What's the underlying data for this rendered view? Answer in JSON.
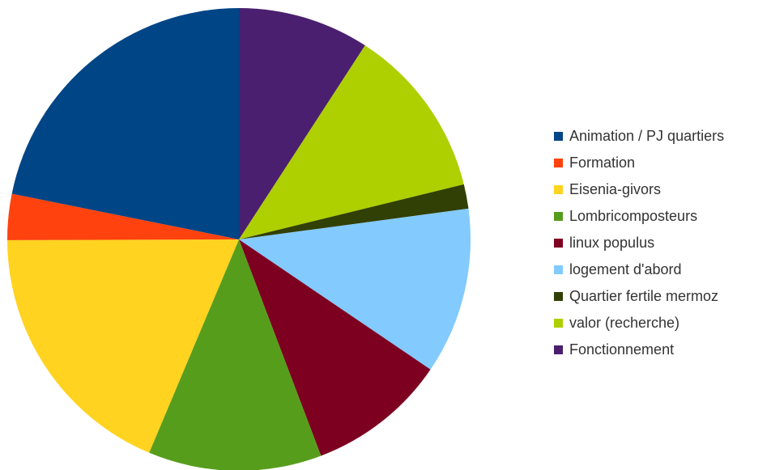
{
  "chart_data": {
    "type": "pie",
    "title": "",
    "start_angle_deg": 0,
    "direction": "clockwise",
    "legend_position": "right",
    "slices": [
      {
        "label": "Animation / PJ quartiers",
        "value": 23.1,
        "color": "#004586"
      },
      {
        "label": "Formation",
        "value": 3.4,
        "color": "#ff420e"
      },
      {
        "label": "Eisenia-givors",
        "value": 19.7,
        "color": "#ffd320"
      },
      {
        "label": "Lombricomposteurs",
        "value": 12.8,
        "color": "#579d1c"
      },
      {
        "label": "linux populus",
        "value": 10.3,
        "color": "#7e0021"
      },
      {
        "label": "logement d'abord",
        "value": 12.3,
        "color": "#83caff"
      },
      {
        "label": "Quartier fertile mermoz",
        "value": 1.8,
        "color": "#314004"
      },
      {
        "label": "valor (recherche)",
        "value": 12.7,
        "color": "#aecf00"
      },
      {
        "label": "Fonctionnement",
        "value": 9.7,
        "color": "#4b1f6f"
      }
    ],
    "drawing_order": [
      "Fonctionnement",
      "valor (recherche)",
      "Quartier fertile mermoz",
      "logement d'abord",
      "linux populus",
      "Lombricomposteurs",
      "Eisenia-givors",
      "Formation",
      "Animation / PJ quartiers"
    ]
  }
}
